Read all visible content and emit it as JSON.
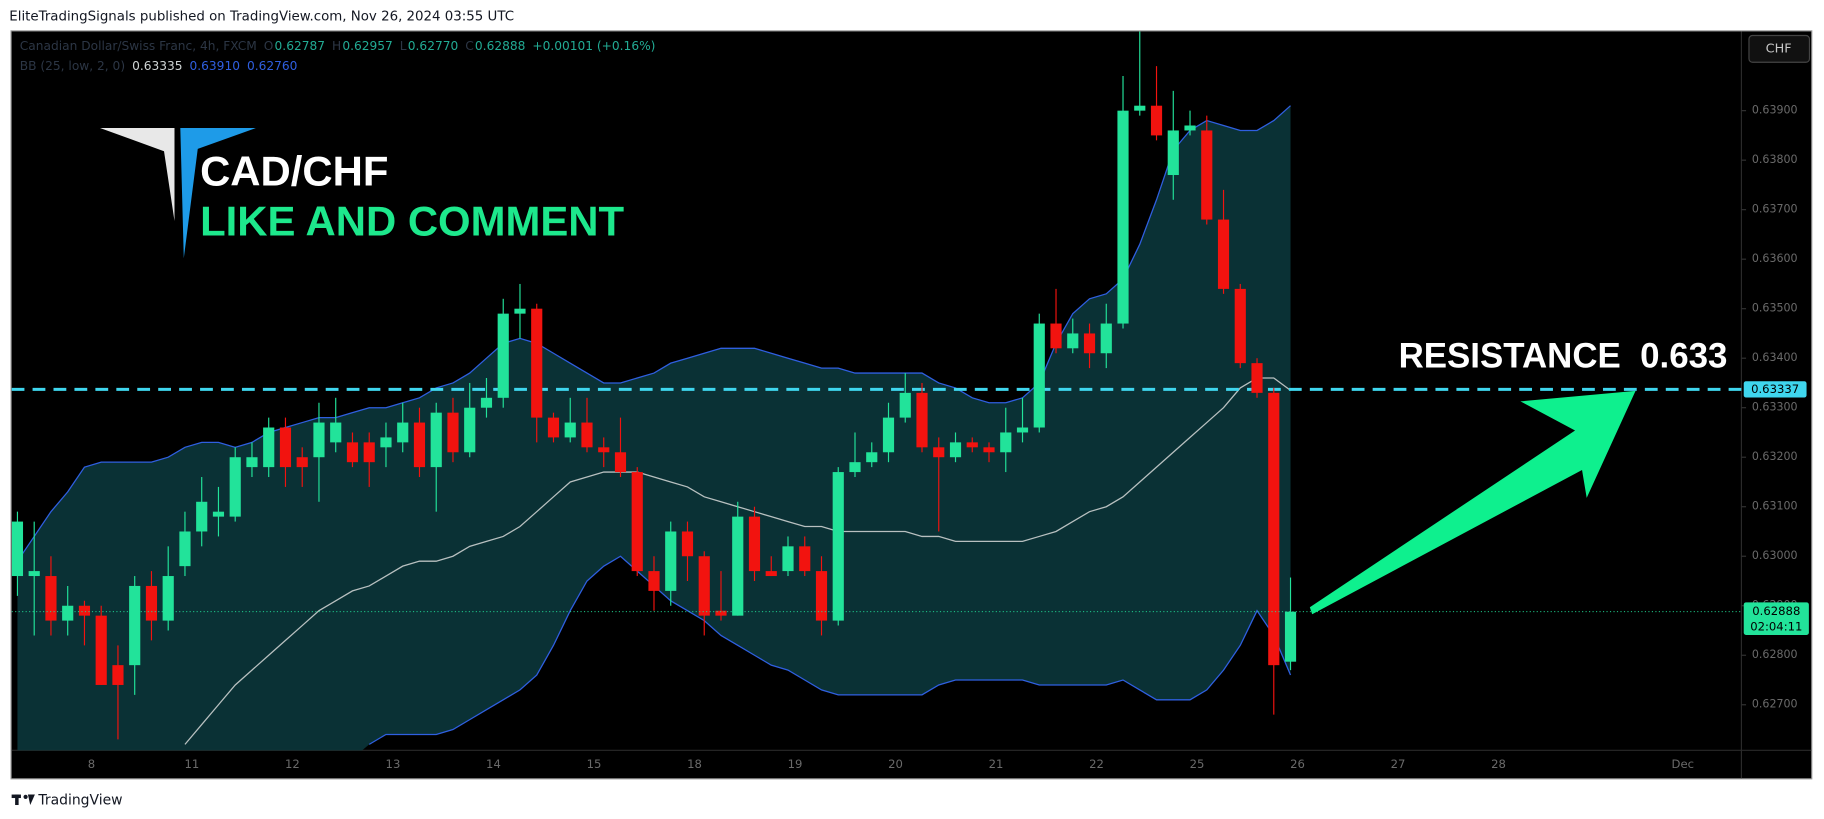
{
  "page": {
    "publisher_line": "EliteTradingSignals published on TradingView.com, Nov 26, 2024 03:55 UTC",
    "footer": "TradingView"
  },
  "chart_data": {
    "type": "candlestick",
    "symbol_legend": {
      "name": "Canadian Dollar/Swiss Franc, 4h, FXCM",
      "fields": [
        {
          "key": "O",
          "value": "0.62787"
        },
        {
          "key": "H",
          "value": "0.62957"
        },
        {
          "key": "L",
          "value": "0.62770"
        },
        {
          "key": "C",
          "value": "0.62888"
        }
      ],
      "change": "+0.00101 (+0.16%)"
    },
    "bb_legend": {
      "label": "BB (25, low, 2, 0)",
      "values": [
        "0.63335",
        "0.63910",
        "0.62760"
      ]
    },
    "overlay": {
      "pair": "CAD/CHF",
      "call": "LIKE AND COMMENT"
    },
    "currency": "CHF",
    "categories": [
      null,
      null,
      null,
      null,
      "8",
      null,
      null,
      null,
      null,
      null,
      "11",
      null,
      null,
      null,
      null,
      null,
      "12",
      null,
      null,
      null,
      null,
      null,
      "13",
      null,
      null,
      null,
      null,
      null,
      "14",
      null,
      null,
      null,
      null,
      null,
      "15",
      null,
      null,
      null,
      null,
      null,
      "18",
      null,
      null,
      null,
      null,
      null,
      "19",
      null,
      null,
      null,
      null,
      null,
      "20",
      null,
      null,
      null,
      null,
      null,
      "21",
      null,
      null,
      null,
      null,
      null,
      "22",
      null,
      null,
      null,
      null,
      null,
      "25",
      null,
      null,
      null,
      null,
      null,
      "26",
      null,
      null,
      null,
      null,
      null,
      "27",
      null,
      null,
      null,
      null,
      null,
      "28",
      null,
      null,
      null,
      null,
      null,
      null,
      null,
      null,
      null,
      null,
      "Dec",
      null,
      null,
      null,
      null
    ],
    "open": [
      0.6296,
      0.6296,
      0.6296,
      0.6287,
      0.629,
      0.6288,
      0.6278,
      0.6278,
      0.6294,
      0.6287,
      0.6298,
      0.6305,
      0.6308,
      0.6308,
      0.6318,
      0.6318,
      0.6326,
      0.632,
      0.632,
      0.6323,
      0.6323,
      0.6323,
      0.6322,
      0.6323,
      0.6327,
      0.6318,
      0.6329,
      0.6321,
      0.633,
      0.6332,
      0.6349,
      0.635,
      0.6328,
      0.6324,
      0.6327,
      0.6322,
      0.6321,
      0.6317,
      0.6297,
      0.6293,
      0.6305,
      0.63,
      0.6289,
      0.6288,
      0.6308,
      0.6297,
      0.6297,
      0.6302,
      0.6297,
      0.6287,
      0.6317,
      0.6319,
      0.6321,
      0.6328,
      0.6333,
      0.6322,
      0.632,
      0.6323,
      0.6322,
      0.6321,
      0.6325,
      0.6326,
      0.6347,
      0.6342,
      0.6345,
      0.6341,
      0.6347,
      0.639,
      0.6391,
      0.6377,
      0.6386,
      0.6386,
      0.6368,
      0.6354,
      0.6339,
      0.6333,
      0.62787,
      null,
      null,
      null,
      null,
      null,
      null,
      null,
      null,
      null,
      null,
      null,
      null,
      null,
      null,
      null,
      null,
      null,
      null,
      null,
      null,
      null,
      null,
      null,
      null,
      null,
      null,
      null
    ],
    "high": [
      0.6309,
      0.6307,
      0.63,
      0.6294,
      0.6291,
      0.629,
      0.6282,
      0.6296,
      0.6297,
      0.6302,
      0.6309,
      0.6316,
      0.6314,
      0.6322,
      0.6323,
      0.6328,
      0.6328,
      0.6322,
      0.6331,
      0.6332,
      0.6325,
      0.6325,
      0.6327,
      0.6331,
      0.633,
      0.6331,
      0.6332,
      0.6335,
      0.6336,
      0.6352,
      0.6355,
      0.6351,
      0.6329,
      0.6332,
      0.6332,
      0.6324,
      0.6328,
      0.6318,
      0.63,
      0.6307,
      0.6307,
      0.6301,
      0.6297,
      0.6311,
      0.631,
      0.63,
      0.6304,
      0.6304,
      0.63,
      0.6318,
      0.6325,
      0.6323,
      0.6331,
      0.6337,
      0.6335,
      0.6324,
      0.6325,
      0.6324,
      0.6323,
      0.633,
      0.6332,
      0.6349,
      0.6354,
      0.6348,
      0.6347,
      0.6351,
      0.6397,
      0.6406,
      0.6399,
      0.6394,
      0.639,
      0.6389,
      0.6374,
      0.6355,
      0.634,
      0.6334,
      0.62957,
      null,
      null,
      null,
      null,
      null,
      null,
      null,
      null,
      null,
      null,
      null,
      null,
      null,
      null,
      null,
      null,
      null,
      null,
      null,
      null,
      null,
      null,
      null,
      null,
      null,
      null,
      null
    ],
    "low": [
      0.6292,
      0.6284,
      0.6284,
      0.6284,
      0.6282,
      0.6274,
      0.6263,
      0.6272,
      0.6283,
      0.6285,
      0.6296,
      0.6302,
      0.6304,
      0.6307,
      0.6316,
      0.6316,
      0.6314,
      0.6314,
      0.6311,
      0.6321,
      0.6318,
      0.6314,
      0.6318,
      0.6321,
      0.6316,
      0.6309,
      0.6319,
      0.632,
      0.6328,
      0.633,
      0.6344,
      0.6323,
      0.6323,
      0.6323,
      0.6321,
      0.6318,
      0.6316,
      0.6296,
      0.6289,
      0.629,
      0.6295,
      0.6284,
      0.6287,
      0.6288,
      0.6295,
      0.6296,
      0.6296,
      0.6296,
      0.6284,
      0.6286,
      0.6316,
      0.6318,
      0.6319,
      0.6327,
      0.6321,
      0.6305,
      0.6319,
      0.6321,
      0.6319,
      0.6317,
      0.6323,
      0.6325,
      0.6341,
      0.6341,
      0.6338,
      0.6338,
      0.6346,
      0.6389,
      0.6384,
      0.6372,
      0.6385,
      0.6367,
      0.6353,
      0.6338,
      0.6332,
      0.6268,
      0.6277,
      null,
      null,
      null,
      null,
      null,
      null,
      null,
      null,
      null,
      null,
      null,
      null,
      null,
      null,
      null,
      null,
      null,
      null,
      null,
      null,
      null,
      null,
      null,
      null,
      null,
      null,
      null
    ],
    "close": [
      0.6307,
      0.6297,
      0.6287,
      0.629,
      0.6288,
      0.6274,
      0.6274,
      0.6294,
      0.6287,
      0.6296,
      0.6305,
      0.6311,
      0.6309,
      0.632,
      0.632,
      0.6326,
      0.6318,
      0.6318,
      0.6327,
      0.6327,
      0.6319,
      0.6319,
      0.6324,
      0.6327,
      0.6318,
      0.6329,
      0.6321,
      0.633,
      0.6332,
      0.6349,
      0.635,
      0.6328,
      0.6324,
      0.6327,
      0.6322,
      0.6321,
      0.6317,
      0.6297,
      0.6293,
      0.6305,
      0.63,
      0.6288,
      0.6288,
      0.6308,
      0.6297,
      0.6296,
      0.6302,
      0.6297,
      0.6287,
      0.6317,
      0.6319,
      0.6321,
      0.6328,
      0.6333,
      0.6322,
      0.632,
      0.6323,
      0.6322,
      0.6321,
      0.6325,
      0.6326,
      0.6347,
      0.6342,
      0.6345,
      0.6341,
      0.6347,
      0.639,
      0.6391,
      0.6385,
      0.6386,
      0.6387,
      0.6368,
      0.6354,
      0.6339,
      0.6333,
      0.6278,
      0.62888,
      null,
      null,
      null,
      null,
      null,
      null,
      null,
      null,
      null,
      null,
      null,
      null,
      null,
      null,
      null,
      null,
      null,
      null,
      null,
      null,
      null,
      null,
      null,
      null,
      null,
      null,
      null
    ],
    "up_color": "#22e39a",
    "down_color": "#f2130f",
    "bollinger": {
      "band_color": "#2f5fe0",
      "basis_color": "#b8c0c0",
      "fill_color": "#0c3a3e",
      "upper": [
        0.6299,
        0.6304,
        0.6309,
        0.6313,
        0.6318,
        0.6319,
        0.6319,
        0.6319,
        0.6319,
        0.632,
        0.6322,
        0.6323,
        0.6323,
        0.6322,
        0.6323,
        0.6325,
        0.6326,
        0.6327,
        0.6328,
        0.6328,
        0.6329,
        0.633,
        0.633,
        0.6331,
        0.6332,
        0.6334,
        0.6335,
        0.6337,
        0.634,
        0.6343,
        0.6344,
        0.6343,
        0.6341,
        0.6339,
        0.6337,
        0.6335,
        0.6335,
        0.6336,
        0.6337,
        0.6339,
        0.634,
        0.6341,
        0.6342,
        0.6342,
        0.6342,
        0.6341,
        0.634,
        0.6339,
        0.6338,
        0.6338,
        0.6337,
        0.6337,
        0.6337,
        0.6337,
        0.6337,
        0.6335,
        0.6334,
        0.6332,
        0.6331,
        0.6331,
        0.6332,
        0.6335,
        0.6343,
        0.6349,
        0.6352,
        0.6353,
        0.6356,
        0.6363,
        0.6372,
        0.6382,
        0.6386,
        0.6388,
        0.6387,
        0.6386,
        0.6386,
        0.6388,
        0.6391,
        null,
        null,
        null,
        null,
        null,
        null,
        null,
        null,
        null,
        null,
        null,
        null,
        null,
        null,
        null,
        null,
        null,
        null,
        null,
        null,
        null,
        null,
        null,
        null,
        null,
        null,
        null
      ],
      "basis": [
        null,
        null,
        null,
        null,
        null,
        null,
        null,
        null,
        null,
        null,
        0.6262,
        0.6266,
        0.627,
        0.6274,
        0.6277,
        0.628,
        0.6283,
        0.6286,
        0.6289,
        0.6291,
        0.6293,
        0.6294,
        0.6296,
        0.6298,
        0.6299,
        0.6299,
        0.63,
        0.6302,
        0.6303,
        0.6304,
        0.6306,
        0.6309,
        0.6312,
        0.6315,
        0.6316,
        0.6317,
        0.6317,
        0.6317,
        0.6316,
        0.6315,
        0.6314,
        0.6312,
        0.6311,
        0.631,
        0.6309,
        0.6308,
        0.6307,
        0.6306,
        0.6306,
        0.6305,
        0.6305,
        0.6305,
        0.6305,
        0.6305,
        0.6304,
        0.6304,
        0.6303,
        0.6303,
        0.6303,
        0.6303,
        0.6303,
        0.6304,
        0.6305,
        0.6307,
        0.6309,
        0.631,
        0.6312,
        0.6315,
        0.6318,
        0.6321,
        0.6324,
        0.6327,
        0.633,
        0.6334,
        0.6336,
        0.6336,
        0.63335,
        null,
        null,
        null,
        null,
        null,
        null,
        null,
        null,
        null,
        null,
        null,
        null,
        null,
        null,
        null,
        null,
        null,
        null,
        null,
        null,
        null,
        null,
        null,
        null,
        null,
        null,
        null
      ],
      "lower": [
        null,
        null,
        null,
        null,
        null,
        null,
        null,
        null,
        null,
        null,
        null,
        null,
        null,
        null,
        null,
        null,
        null,
        null,
        null,
        null,
        null,
        0.6262,
        0.6264,
        0.6264,
        0.6264,
        0.6264,
        0.6265,
        0.6267,
        0.6269,
        0.6271,
        0.6273,
        0.6276,
        0.6282,
        0.6289,
        0.6295,
        0.6298,
        0.63,
        0.6297,
        0.6294,
        0.6291,
        0.6289,
        0.6287,
        0.6284,
        0.6282,
        0.628,
        0.6278,
        0.6277,
        0.6275,
        0.6273,
        0.6272,
        0.6272,
        0.6272,
        0.6272,
        0.6272,
        0.6272,
        0.6274,
        0.6275,
        0.6275,
        0.6275,
        0.6275,
        0.6275,
        0.6274,
        0.6274,
        0.6274,
        0.6274,
        0.6274,
        0.6275,
        0.6273,
        0.6271,
        0.6271,
        0.6271,
        0.6273,
        0.6277,
        0.6282,
        0.6289,
        0.6284,
        0.6276,
        null,
        null,
        null,
        null,
        null,
        null,
        null,
        null,
        null,
        null,
        null,
        null,
        null,
        null,
        null,
        null,
        null,
        null,
        null,
        null,
        null,
        null,
        null,
        null,
        null,
        null,
        null
      ]
    },
    "ylim": [
      0.62615,
      0.6406
    ],
    "yticks": [
      {
        "value": 0.627,
        "label": "0.62700"
      },
      {
        "value": 0.628,
        "label": "0.62800"
      },
      {
        "value": 0.629,
        "label": "0.62900"
      },
      {
        "value": 0.63,
        "label": "0.63000"
      },
      {
        "value": 0.631,
        "label": "0.63100"
      },
      {
        "value": 0.632,
        "label": "0.63200"
      },
      {
        "value": 0.633,
        "label": "0.63300"
      },
      {
        "value": 0.634,
        "label": "0.63400"
      },
      {
        "value": 0.635,
        "label": "0.63500"
      },
      {
        "value": 0.636,
        "label": "0.63600"
      },
      {
        "value": 0.637,
        "label": "0.63700"
      },
      {
        "value": 0.638,
        "label": "0.63800"
      },
      {
        "value": 0.639,
        "label": "0.63900"
      }
    ],
    "resistance": {
      "label": "RESISTANCE  0.633",
      "level": 0.63337,
      "color": "#3fd6ee"
    },
    "last_price": {
      "countdown": "02:04:11"
    }
  }
}
